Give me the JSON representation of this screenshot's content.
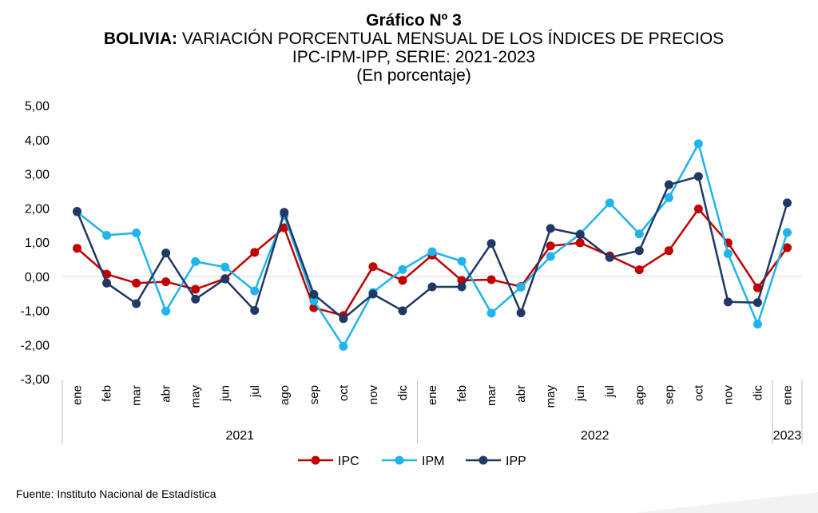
{
  "titles": {
    "line1": "Gráfico Nº 3",
    "line2_bold": "BOLIVIA:",
    "line2_rest": " VARIACIÓN PORCENTUAL MENSUAL DE LOS ÍNDICES DE PRECIOS",
    "line3": "IPC-IPM-IPP, SERIE: 2021-2023",
    "line4": "(En porcentaje)"
  },
  "source": "Fuente: Instituto Nacional de Estadística",
  "chart_data": {
    "type": "line",
    "categories": [
      "ene",
      "feb",
      "mar",
      "abr",
      "may",
      "jun",
      "jul",
      "ago",
      "sep",
      "oct",
      "nov",
      "dic",
      "ene",
      "feb",
      "mar",
      "abr",
      "may",
      "jun",
      "jul",
      "ago",
      "sep",
      "oct",
      "nov",
      "dic",
      "ene"
    ],
    "year_groups": [
      {
        "label": "2021",
        "start": 0,
        "end": 11
      },
      {
        "label": "2022",
        "start": 12,
        "end": 23
      },
      {
        "label": "2023",
        "start": 24,
        "end": 24
      }
    ],
    "y_ticks": [
      "5,00",
      "4,00",
      "3,00",
      "2,00",
      "1,00",
      "0,00",
      "-1,00",
      "-2,00",
      "-3,00"
    ],
    "ylim": [
      -3,
      5
    ],
    "legend_position": "bottom",
    "series": [
      {
        "name": "IPC",
        "color": "#c00000",
        "values": [
          0.82,
          0.06,
          -0.2,
          -0.16,
          -0.38,
          -0.07,
          0.7,
          1.42,
          -0.92,
          -1.15,
          0.28,
          -0.12,
          0.62,
          -0.12,
          -0.1,
          -0.3,
          0.89,
          0.98,
          0.6,
          0.19,
          0.75,
          1.97,
          0.98,
          -0.34,
          0.84
        ]
      },
      {
        "name": "IPM",
        "color": "#1fb4ec",
        "values": [
          1.88,
          1.2,
          1.27,
          -1.02,
          0.43,
          0.27,
          -0.43,
          1.78,
          -0.72,
          -2.05,
          -0.47,
          0.2,
          0.72,
          0.44,
          -1.08,
          -0.32,
          0.58,
          1.24,
          2.15,
          1.24,
          2.3,
          3.88,
          0.66,
          -1.4,
          1.28
        ]
      },
      {
        "name": "IPP",
        "color": "#1f3864",
        "values": [
          1.9,
          -0.2,
          -0.8,
          0.68,
          -0.67,
          -0.08,
          -1.0,
          1.87,
          -0.53,
          -1.24,
          -0.52,
          -1.01,
          -0.31,
          -0.31,
          0.96,
          -1.07,
          1.4,
          1.22,
          0.55,
          0.75,
          2.68,
          2.92,
          -0.75,
          -0.77,
          2.15
        ]
      }
    ]
  }
}
